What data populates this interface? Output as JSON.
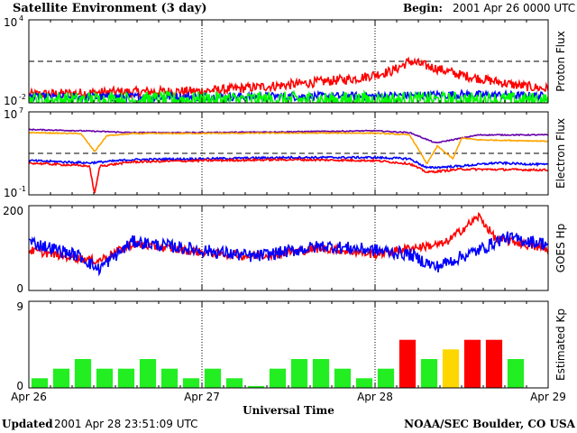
{
  "header": {
    "title": "Satellite Environment (3 day)",
    "begin_label": "Begin:",
    "begin_value": "2001 Apr 26 0000 UTC"
  },
  "footer": {
    "updated_label": "Updated",
    "updated_value": "2001 Apr 28 23:51:09 UTC",
    "credit": "NOAA/SEC Boulder, CO USA"
  },
  "x_axis": {
    "label": "Universal Time",
    "ticks": [
      "Apr 26",
      "Apr 27",
      "Apr 28",
      "Apr 29"
    ],
    "range_days": [
      0,
      3
    ]
  },
  "colors": {
    "red": "#ff0000",
    "blue": "#0000ff",
    "green": "#00ff00",
    "purple": "#6600aa",
    "orange": "#ffa500",
    "kp_yellow": "#ffd700",
    "kp_green": "#22ee22",
    "kp_red": "#ff0000"
  },
  "chart_data": [
    {
      "id": "proton",
      "type": "line",
      "ylabel": "Proton Flux",
      "scale": "log",
      "ylim": [
        0.01,
        10000
      ],
      "ytick_base": [
        "10",
        "10"
      ],
      "ytick_exp": [
        "4",
        "-2"
      ],
      "threshold": 10,
      "series": [
        {
          "color": "red",
          "noise": 0.35,
          "x": [
            0,
            0.5,
            1.0,
            1.5,
            1.9,
            2.1,
            2.2,
            2.5,
            2.8,
            3.0
          ],
          "y": [
            0.04,
            0.06,
            0.07,
            0.2,
            0.6,
            2.0,
            10,
            1.0,
            0.2,
            0.1
          ]
        },
        {
          "color": "blue",
          "noise": 0.3,
          "x": [
            0,
            1.0,
            2.0,
            2.5,
            3.0
          ],
          "y": [
            0.025,
            0.028,
            0.03,
            0.04,
            0.03
          ]
        },
        {
          "color": "green",
          "noise": 0.6,
          "x": [
            0,
            1.0,
            2.0,
            3.0
          ],
          "y": [
            0.015,
            0.017,
            0.016,
            0.015
          ]
        }
      ]
    },
    {
      "id": "electron",
      "type": "line",
      "ylabel": "Electron Flux",
      "scale": "log",
      "ylim": [
        0.1,
        10000000
      ],
      "ytick_base": [
        "10",
        "10"
      ],
      "ytick_exp": [
        "7",
        "-1"
      ],
      "threshold": 1000,
      "series": [
        {
          "color": "purple",
          "noise": 0.05,
          "x": [
            0,
            0.3,
            0.6,
            1.0,
            1.5,
            2.0,
            2.2,
            2.35,
            2.5,
            2.6,
            3.0
          ],
          "y": [
            200000,
            150000,
            100000,
            100000,
            120000,
            150000,
            100000,
            10000,
            30000,
            60000,
            60000
          ]
        },
        {
          "color": "orange",
          "noise": 0.05,
          "x": [
            0,
            0.3,
            0.38,
            0.45,
            0.6,
            1.5,
            2.0,
            2.2,
            2.3,
            2.36,
            2.45,
            2.5,
            2.6,
            3.0
          ],
          "y": [
            100000,
            80000,
            1500,
            50000,
            80000,
            90000,
            90000,
            60000,
            100,
            5000,
            300,
            30000,
            20000,
            15000
          ]
        },
        {
          "color": "blue",
          "noise": 0.1,
          "x": [
            0,
            0.35,
            0.6,
            1.0,
            1.5,
            2.0,
            2.2,
            2.3,
            2.5,
            2.7,
            3.0
          ],
          "y": [
            200,
            120,
            250,
            300,
            400,
            400,
            300,
            40,
            60,
            120,
            80
          ]
        },
        {
          "color": "red",
          "noise": 0.1,
          "x": [
            0,
            0.35,
            0.38,
            0.41,
            0.6,
            1.0,
            1.5,
            2.0,
            2.2,
            2.3,
            2.5,
            3.0
          ],
          "y": [
            120,
            60,
            0.12,
            60,
            150,
            200,
            250,
            200,
            100,
            15,
            30,
            25
          ]
        }
      ]
    },
    {
      "id": "hp",
      "type": "line",
      "ylabel": "GOES Hp",
      "scale": "linear",
      "ylim": [
        0,
        200
      ],
      "ytick_labels": [
        "200",
        "0"
      ],
      "series": [
        {
          "color": "red",
          "noise": 2,
          "x": [
            0,
            0.3,
            0.4,
            0.6,
            1.0,
            1.3,
            1.7,
            2.0,
            2.2,
            2.4,
            2.6,
            2.7,
            2.8,
            3.0
          ],
          "y": [
            95,
            75,
            70,
            110,
            90,
            80,
            100,
            85,
            100,
            110,
            175,
            120,
            115,
            95
          ]
        },
        {
          "color": "blue",
          "noise": 3,
          "x": [
            0,
            0.3,
            0.4,
            0.6,
            1.0,
            1.3,
            1.7,
            2.0,
            2.2,
            2.35,
            2.5,
            2.6,
            2.75,
            3.0
          ],
          "y": [
            115,
            80,
            50,
            115,
            95,
            80,
            105,
            95,
            85,
            55,
            80,
            95,
            125,
            110
          ]
        }
      ]
    },
    {
      "id": "kp",
      "type": "bar",
      "ylabel": "Estimated Kp",
      "ylim": [
        0,
        9
      ],
      "ytick_labels": [
        "9",
        "0"
      ],
      "values": [
        1,
        2,
        3,
        2,
        2,
        3,
        2,
        1,
        2,
        1,
        0.2,
        2,
        3,
        3,
        2,
        1,
        2,
        5,
        3,
        4,
        5,
        5,
        3
      ],
      "bar_colors": [
        "kp_green",
        "kp_green",
        "kp_green",
        "kp_green",
        "kp_green",
        "kp_green",
        "kp_green",
        "kp_green",
        "kp_green",
        "kp_green",
        "kp_green",
        "kp_green",
        "kp_green",
        "kp_green",
        "kp_green",
        "kp_green",
        "kp_green",
        "kp_red",
        "kp_green",
        "kp_yellow",
        "kp_red",
        "kp_red",
        "kp_green"
      ]
    }
  ]
}
